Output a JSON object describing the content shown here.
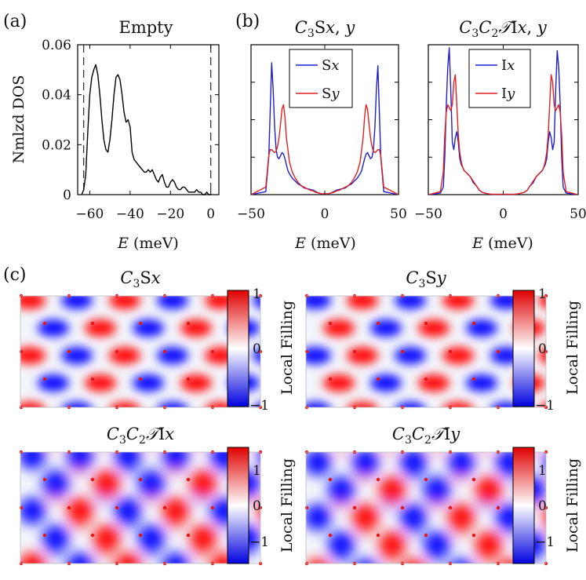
{
  "panel_labels": [
    "(a)",
    "(b)",
    "(c)"
  ],
  "chart_data": [
    {
      "type": "line",
      "panel": "(a)",
      "title": "Empty",
      "xlabel": "E (meV)",
      "ylabel": "Nmlzd DOS",
      "xlim": [
        -66,
        4
      ],
      "ylim": [
        0,
        0.06
      ],
      "xticks": [
        -60,
        -40,
        -20,
        0
      ],
      "xtick_labels": [
        "-60",
        "-40",
        "-20",
        "0"
      ],
      "yticks": [
        0,
        0.02,
        0.04,
        0.06
      ],
      "ytick_labels": [
        "0",
        "0.02",
        "0.04",
        "0.06"
      ],
      "vlines": [
        -63,
        0
      ],
      "series": [
        {
          "color": "#000000",
          "x": [
            -64,
            -63,
            -62,
            -61,
            -60,
            -59,
            -58,
            -57,
            -56,
            -55,
            -54,
            -53,
            -52,
            -51,
            -50,
            -49,
            -48,
            -47,
            -46,
            -45,
            -44,
            -43,
            -42,
            -41,
            -40,
            -39,
            -38,
            -37,
            -36,
            -35,
            -34,
            -33,
            -32,
            -31,
            -30,
            -29,
            -28,
            -27,
            -26,
            -25,
            -24,
            -23,
            -22,
            -21,
            -20,
            -19,
            -18,
            -17,
            -16,
            -15,
            -14,
            -13,
            -12,
            -11,
            -10,
            -9,
            -8,
            -7,
            -6,
            -5,
            -4,
            -3,
            -2,
            -1,
            0
          ],
          "y": [
            0.0,
            0.002,
            0.008,
            0.025,
            0.04,
            0.047,
            0.05,
            0.052,
            0.048,
            0.04,
            0.03,
            0.022,
            0.018,
            0.017,
            0.022,
            0.03,
            0.04,
            0.047,
            0.048,
            0.046,
            0.04,
            0.033,
            0.029,
            0.03,
            0.027,
            0.017,
            0.014,
            0.013,
            0.012,
            0.011,
            0.01,
            0.009,
            0.009,
            0.01,
            0.009,
            0.01,
            0.008,
            0.006,
            0.005,
            0.007,
            0.008,
            0.005,
            0.003,
            0.003,
            0.005,
            0.006,
            0.005,
            0.003,
            0.002,
            0.002,
            0.003,
            0.003,
            0.002,
            0.001,
            0.001,
            0.001,
            0.001,
            0.002,
            0.001,
            0.001,
            0.0,
            0.0,
            0.001,
            0.0,
            0.0
          ]
        }
      ]
    },
    {
      "type": "line",
      "panel": "(b)",
      "title": "C3Sx, y",
      "xlabel": "E (meV)",
      "xlim": [
        -50,
        50
      ],
      "xticks": [
        -50,
        0,
        50
      ],
      "xtick_labels": [
        "-50",
        "0",
        "50"
      ],
      "legend_position": "top-center",
      "series": [
        {
          "name": "Sx",
          "color": "#1f1fd0",
          "x": [
            -50,
            -40,
            -38,
            -37,
            -36,
            -35,
            -34,
            -33,
            -32,
            -31,
            -30,
            -29,
            -28,
            -27,
            -26,
            -25,
            -24,
            -22,
            -20,
            -18,
            -16,
            -14,
            -12,
            -10,
            -8,
            -6,
            -4,
            -2,
            0,
            2,
            4,
            6,
            8,
            10,
            12,
            14,
            16,
            18,
            20,
            22,
            24,
            25,
            26,
            27,
            28,
            29,
            30,
            31,
            32,
            33,
            34,
            35,
            36,
            37,
            38,
            40,
            50
          ],
          "y": [
            0,
            0.02,
            0.25,
            0.55,
            0.88,
            0.7,
            0.45,
            0.3,
            0.25,
            0.24,
            0.26,
            0.28,
            0.27,
            0.24,
            0.2,
            0.16,
            0.14,
            0.11,
            0.09,
            0.07,
            0.06,
            0.045,
            0.04,
            0.035,
            0.03,
            0.02,
            0.01,
            0.005,
            0.004,
            0.005,
            0.01,
            0.02,
            0.03,
            0.035,
            0.04,
            0.045,
            0.06,
            0.07,
            0.09,
            0.11,
            0.14,
            0.16,
            0.2,
            0.24,
            0.27,
            0.28,
            0.26,
            0.24,
            0.25,
            0.3,
            0.45,
            0.7,
            0.86,
            0.55,
            0.25,
            0.02,
            0
          ]
        },
        {
          "name": "Sy",
          "color": "#e02020",
          "x": [
            -50,
            -40,
            -38,
            -37,
            -36,
            -35,
            -34,
            -33,
            -32,
            -31,
            -30,
            -29,
            -28,
            -27,
            -26,
            -25,
            -24,
            -22,
            -20,
            -18,
            -16,
            -14,
            -12,
            -10,
            -8,
            -6,
            -4,
            -2,
            0,
            2,
            4,
            6,
            8,
            10,
            12,
            14,
            16,
            18,
            20,
            22,
            24,
            25,
            26,
            27,
            28,
            29,
            30,
            31,
            32,
            33,
            34,
            35,
            36,
            37,
            38,
            40,
            50
          ],
          "y": [
            0,
            0.05,
            0.26,
            0.3,
            0.3,
            0.29,
            0.28,
            0.29,
            0.32,
            0.38,
            0.47,
            0.57,
            0.6,
            0.52,
            0.38,
            0.3,
            0.22,
            0.15,
            0.11,
            0.08,
            0.06,
            0.05,
            0.04,
            0.03,
            0.025,
            0.015,
            0.01,
            0.006,
            0.005,
            0.006,
            0.01,
            0.015,
            0.025,
            0.03,
            0.04,
            0.05,
            0.06,
            0.08,
            0.11,
            0.15,
            0.22,
            0.3,
            0.38,
            0.52,
            0.6,
            0.57,
            0.47,
            0.38,
            0.32,
            0.29,
            0.28,
            0.29,
            0.3,
            0.3,
            0.26,
            0.05,
            0
          ]
        }
      ]
    },
    {
      "type": "line",
      "panel": "(b)",
      "title": "C3C2TIx, y",
      "xlabel": "E (meV)",
      "xlim": [
        -50,
        50
      ],
      "xticks": [
        -50,
        0,
        50
      ],
      "xtick_labels": [
        "-50",
        "0",
        "50"
      ],
      "legend_position": "top-center",
      "series": [
        {
          "name": "Ix",
          "color": "#1f1fd0",
          "x": [
            -50,
            -42,
            -40,
            -39,
            -38,
            -37,
            -36,
            -35,
            -34,
            -33,
            -32,
            -31,
            -30,
            -29,
            -28,
            -27,
            -26,
            -25,
            -24,
            -22,
            -20,
            -18,
            -16,
            -14,
            -12,
            -10,
            -8,
            -6,
            -4,
            -2,
            0,
            2,
            4,
            6,
            8,
            10,
            12,
            14,
            16,
            18,
            20,
            22,
            24,
            25,
            26,
            27,
            28,
            29,
            30,
            31,
            32,
            33,
            34,
            35,
            36,
            37,
            38,
            39,
            40,
            42,
            50
          ],
          "y": [
            0,
            0.01,
            0.05,
            0.25,
            0.6,
            0.85,
            0.98,
            0.7,
            0.35,
            0.3,
            0.38,
            0.42,
            0.35,
            0.24,
            0.2,
            0.18,
            0.16,
            0.15,
            0.14,
            0.12,
            0.08,
            0.06,
            0.03,
            0.015,
            0.01,
            0.005,
            0.003,
            0.002,
            0.002,
            0.002,
            0.002,
            0.002,
            0.002,
            0.002,
            0.003,
            0.005,
            0.01,
            0.015,
            0.03,
            0.06,
            0.08,
            0.12,
            0.14,
            0.15,
            0.16,
            0.18,
            0.2,
            0.24,
            0.35,
            0.42,
            0.38,
            0.3,
            0.35,
            0.7,
            0.96,
            0.85,
            0.6,
            0.25,
            0.05,
            0.01,
            0
          ]
        },
        {
          "name": "Iy",
          "color": "#e02020",
          "x": [
            -50,
            -42,
            -40,
            -39,
            -38,
            -37,
            -36,
            -35,
            -34,
            -33,
            -32,
            -31,
            -30,
            -29,
            -28,
            -27,
            -26,
            -25,
            -24,
            -22,
            -20,
            -18,
            -16,
            -14,
            -12,
            -10,
            -8,
            -6,
            -4,
            -2,
            0,
            2,
            4,
            6,
            8,
            10,
            12,
            14,
            16,
            18,
            20,
            22,
            24,
            25,
            26,
            27,
            28,
            29,
            30,
            31,
            32,
            33,
            34,
            35,
            36,
            37,
            38,
            39,
            40,
            42,
            50
          ],
          "y": [
            0,
            0.02,
            0.15,
            0.4,
            0.55,
            0.6,
            0.58,
            0.56,
            0.6,
            0.75,
            0.8,
            0.6,
            0.4,
            0.28,
            0.22,
            0.18,
            0.16,
            0.15,
            0.14,
            0.12,
            0.09,
            0.06,
            0.03,
            0.015,
            0.01,
            0.005,
            0.003,
            0.002,
            0.002,
            0.002,
            0.002,
            0.002,
            0.002,
            0.002,
            0.003,
            0.005,
            0.01,
            0.015,
            0.03,
            0.06,
            0.09,
            0.12,
            0.14,
            0.15,
            0.16,
            0.18,
            0.22,
            0.28,
            0.4,
            0.6,
            0.8,
            0.75,
            0.6,
            0.56,
            0.58,
            0.6,
            0.55,
            0.4,
            0.15,
            0.02,
            0
          ]
        }
      ]
    },
    {
      "type": "heatmap",
      "panel": "(c)",
      "title": "C3Sx",
      "colorbar_label": "Local Filling",
      "colorbar_ticks": [
        "1",
        "0",
        "-1"
      ],
      "colorbar_range": [
        -1,
        1
      ]
    },
    {
      "type": "heatmap",
      "panel": "(c)",
      "title": "C3Sy",
      "colorbar_label": "Local Filling",
      "colorbar_ticks": [
        "1",
        "0",
        "-1"
      ],
      "colorbar_range": [
        -1,
        1
      ]
    },
    {
      "type": "heatmap",
      "panel": "(c)",
      "title": "C3C2TIx",
      "colorbar_label": "Local Filling",
      "colorbar_ticks": [
        "1",
        "0",
        "-1"
      ],
      "colorbar_range": [
        -1.6,
        1.6
      ]
    },
    {
      "type": "heatmap",
      "panel": "(c)",
      "title": "C3C2TIy",
      "colorbar_label": "Local Filling",
      "colorbar_ticks": [
        "1",
        "0",
        "-1"
      ],
      "colorbar_range": [
        -1.6,
        1.6
      ]
    }
  ],
  "colors": {
    "positive": "#ff0000",
    "negative": "#0000ff",
    "neutral": "#ffffff",
    "site_dot": "#e01818",
    "axis": "#000000"
  }
}
